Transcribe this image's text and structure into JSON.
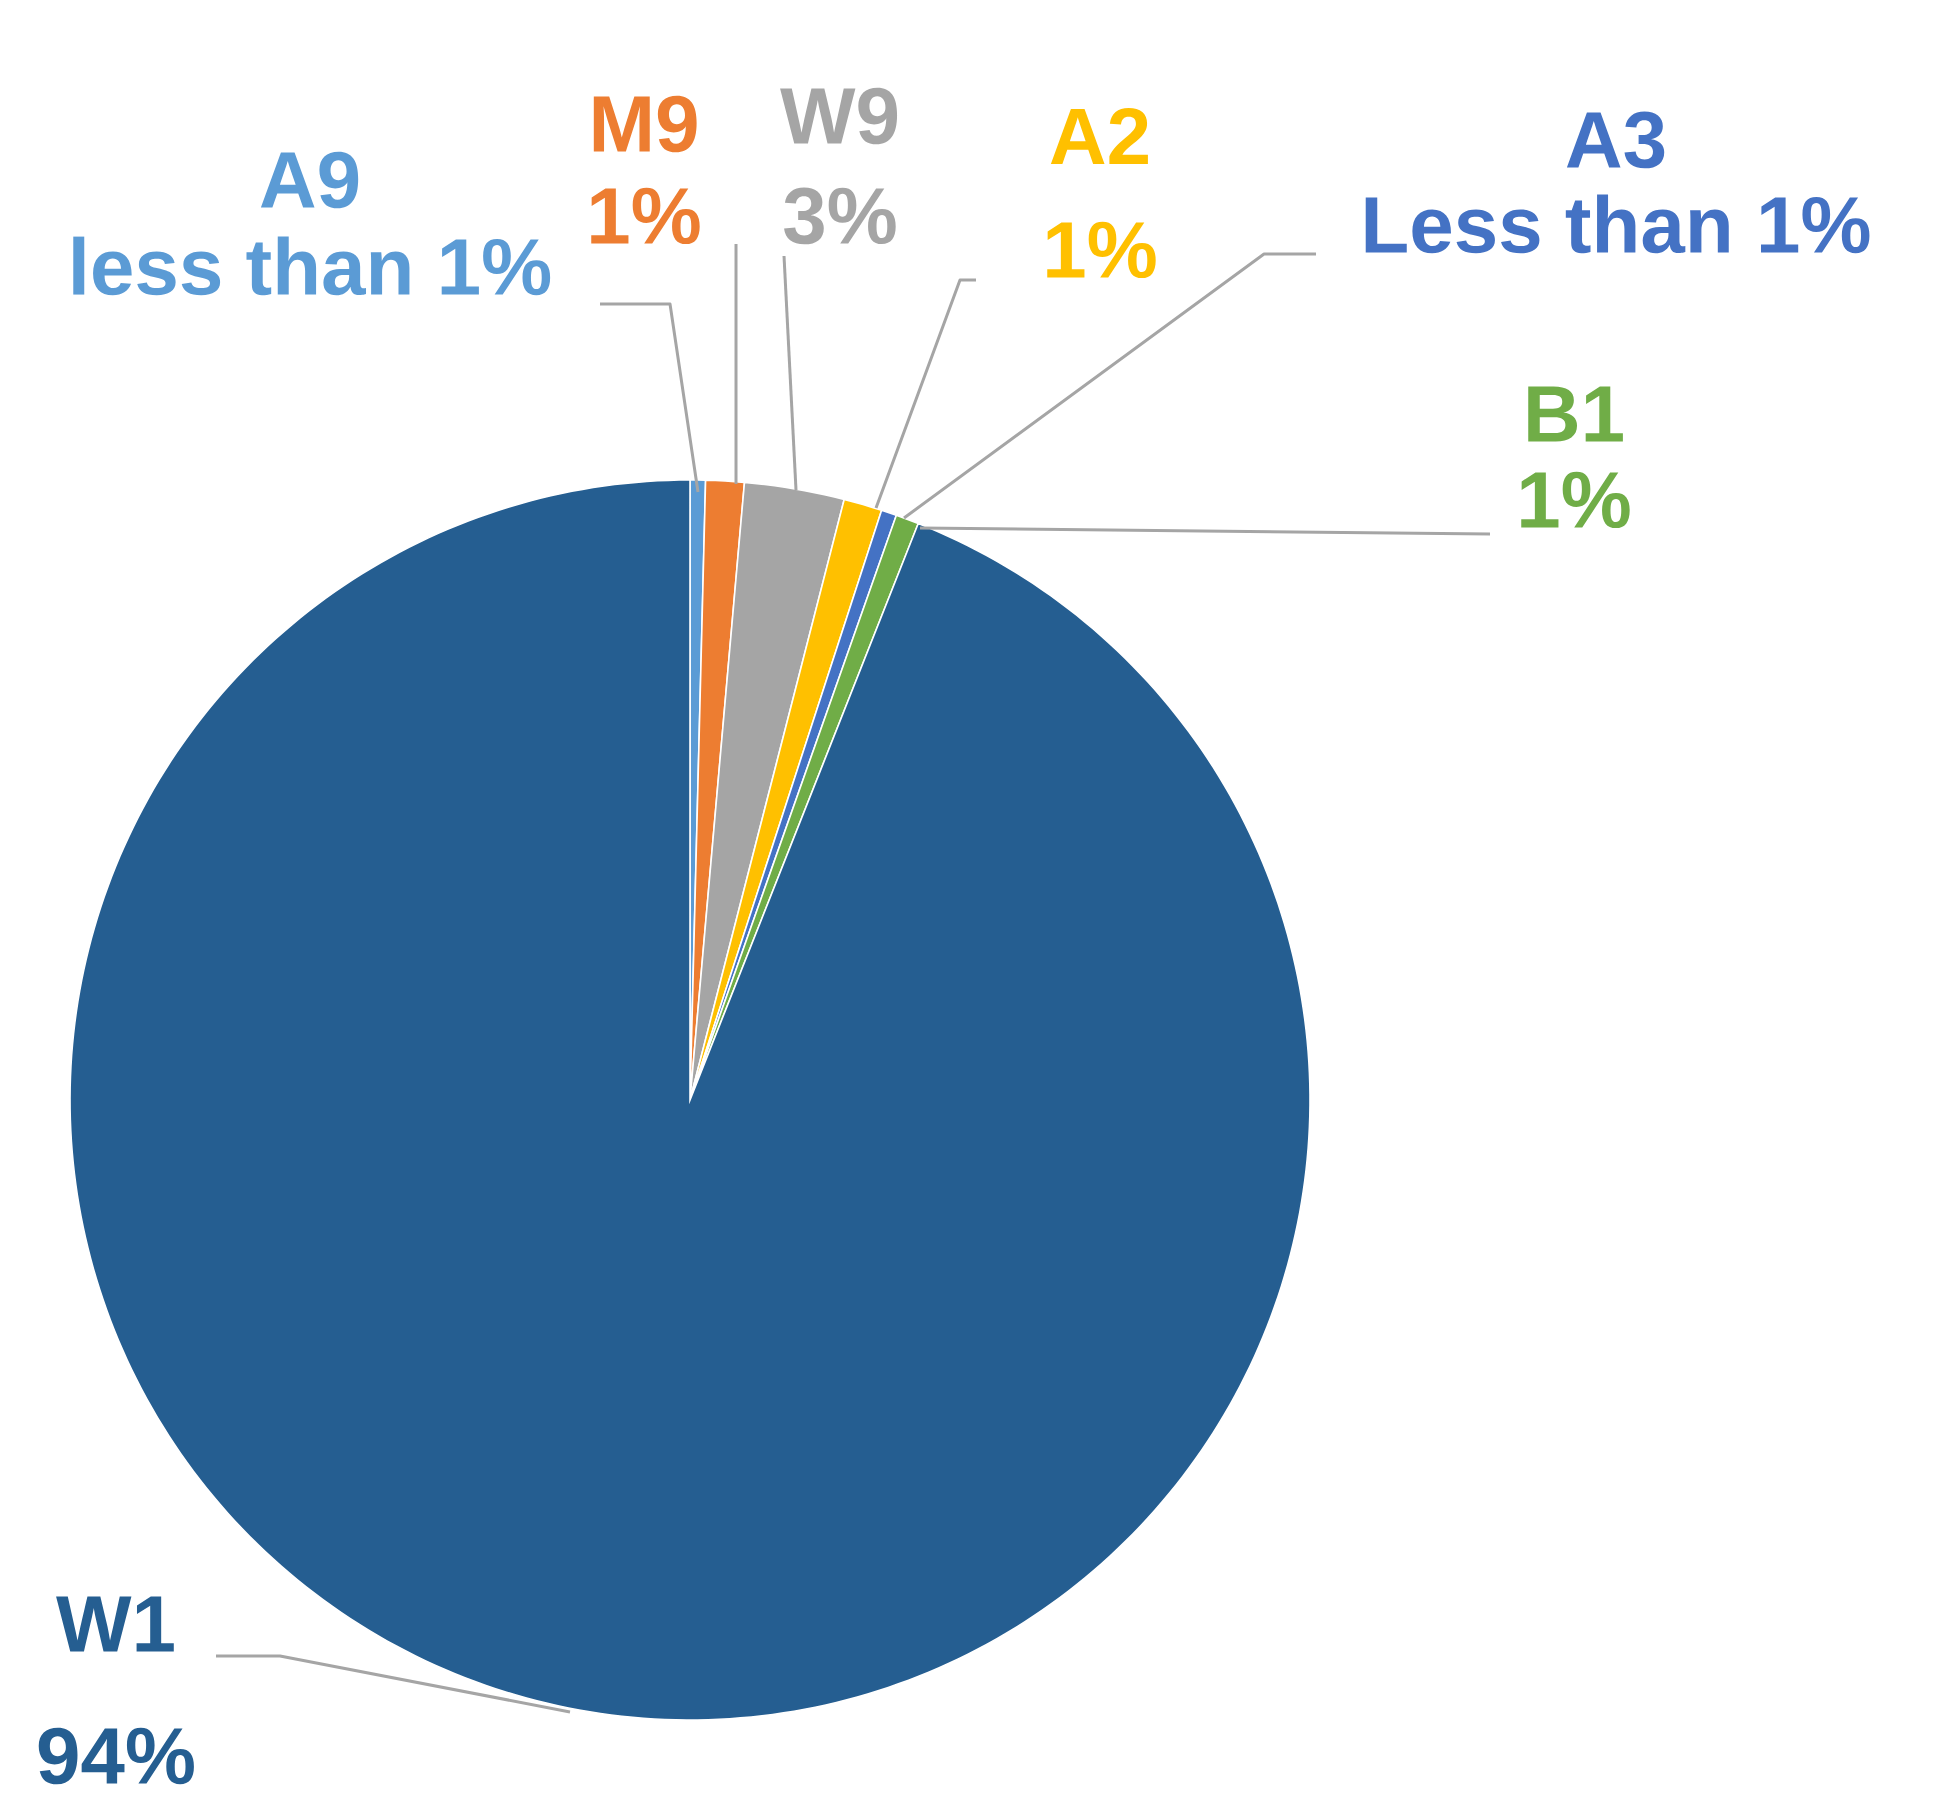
{
  "chart_data": {
    "type": "pie",
    "categories": [
      "A9",
      "M9",
      "W9",
      "A2",
      "A3",
      "B1",
      "W1"
    ],
    "values": [
      0.4,
      1,
      2.6,
      1,
      0.4,
      0.6,
      94
    ],
    "colors": [
      "#5b9bd5",
      "#ed7d31",
      "#a5a5a5",
      "#ffc000",
      "#4472c4",
      "#70ad47",
      "#255e91"
    ],
    "value_labels": [
      "less than 1%",
      "1%",
      "3%",
      "1%",
      "Less than 1%",
      "1%",
      "94%"
    ]
  }
}
